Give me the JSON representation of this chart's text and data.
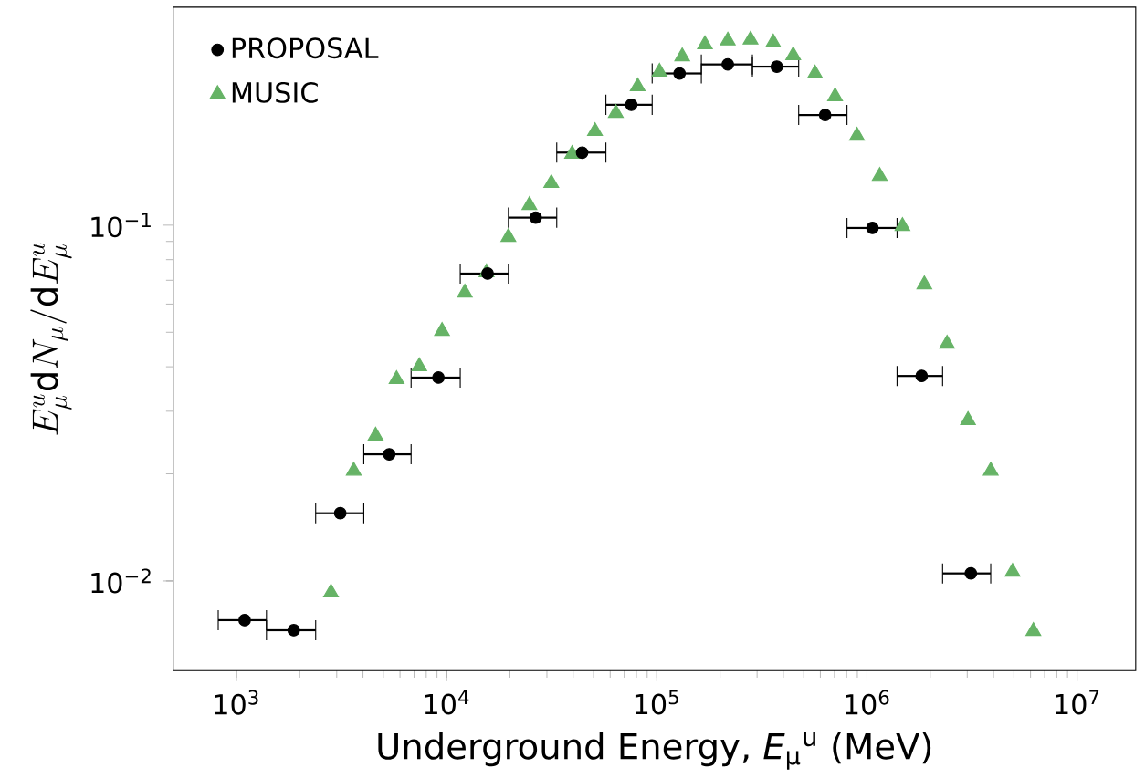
{
  "chart_data": {
    "type": "scatter",
    "xlabel": "Underground Energy, *E*$_{μ}$$^{u}$ (MeV)",
    "ylabel": "E^{u}_{\\mu}\\mathrm{d}N_{\\mu}/\\mathrm{d}E^{u}_{\\mu}",
    "log": "xy",
    "legend": "top left",
    "grid": false,
    "xlim": [
      500,
      19000000
    ],
    "ylim": [
      0.0056,
      0.41
    ],
    "xticks": [
      {
        "value": 1000,
        "label": "10$^{3}$"
      },
      {
        "value": 10000,
        "label": "10$^{4}$"
      },
      {
        "value": 100000,
        "label": "10$^{5}$"
      },
      {
        "value": 1000000,
        "label": "10$^{6}$"
      },
      {
        "value": 10000000,
        "label": "10$^{7}$"
      }
    ],
    "yticks": [
      {
        "value": 0.01,
        "label": "10$^{−2}$"
      },
      {
        "value": 0.1,
        "label": "10$^{−1}$"
      }
    ],
    "series": [
      {
        "name": "PROPOSAL",
        "color": "#000000",
        "marker": "circle",
        "x": [
          1094,
          1874,
          3118,
          5333,
          9140,
          15670,
          26530,
          44130,
          75630,
          128300,
          217600,
          372400,
          632400,
          1062000,
          1820000,
          3120000
        ],
        "values": [
          0.00776,
          0.00727,
          0.0155,
          0.0227,
          0.0373,
          0.0731,
          0.105,
          0.16,
          0.218,
          0.267,
          0.283,
          0.279,
          0.204,
          0.0982,
          0.0377,
          0.0105
        ],
        "xerrors": [
          [
            819,
            1389
          ],
          [
            1389,
            2382
          ],
          [
            2382,
            4036
          ],
          [
            4036,
            6776
          ],
          [
            6776,
            11610
          ],
          [
            11610,
            19680
          ],
          [
            19680,
            33420
          ],
          [
            33420,
            57270
          ],
          [
            57270,
            95060
          ],
          [
            95060,
            162900
          ],
          [
            162900,
            285000
          ],
          [
            285000,
            473200
          ],
          [
            473200,
            803500
          ],
          [
            803500,
            1390000
          ],
          [
            1390000,
            2290000
          ],
          [
            2290000,
            3880000
          ]
        ]
      },
      {
        "name": "MUSIC",
        "color": "#66b366",
        "marker": "triangle",
        "x": [
          2818,
          3615,
          4592,
          5781,
          7413,
          9510,
          12210,
          15490,
          19680,
          24770,
          31480,
          39550,
          50800,
          63830,
          81100,
          103000,
          132100,
          169500,
          217700,
          279300,
          358100,
          445800,
          566200,
          705100,
          896100,
          1150000,
          1475000,
          1875000,
          2404000,
          3025000,
          3881000,
          4930000,
          6190000
        ],
        "values": [
          0.00927,
          0.0204,
          0.0256,
          0.0369,
          0.0401,
          0.0504,
          0.0646,
          0.0736,
          0.0926,
          0.1138,
          0.1312,
          0.1585,
          0.1837,
          0.2066,
          0.2453,
          0.2697,
          0.298,
          0.322,
          0.33,
          0.332,
          0.326,
          0.3,
          0.2666,
          0.2301,
          0.1783,
          0.1374,
          0.0994,
          0.0681,
          0.0464,
          0.0283,
          0.0204,
          0.0106,
          0.00723
        ]
      }
    ]
  }
}
